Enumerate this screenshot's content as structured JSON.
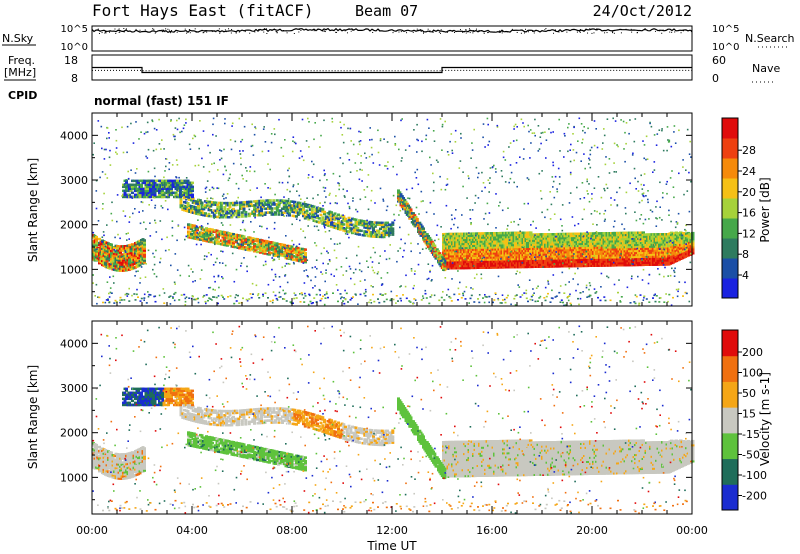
{
  "header": {
    "station": "Fort Hays East (fitACF)",
    "beam": "Beam 07",
    "date": "24/Oct/2012",
    "cpid_label": "CPID",
    "cpid_value": "normal (fast) 151 IF"
  },
  "top_panels": {
    "nsky": {
      "label": "N.Sky",
      "ticks": [
        "10^5",
        "10^0"
      ],
      "right_label": "N.Search",
      "right_ticks": [
        "10^5",
        "10^0"
      ]
    },
    "freq": {
      "label_line1": "Freq.",
      "label_line2": "[MHz]",
      "ticks": [
        "18",
        "8"
      ],
      "right_label": "Nave",
      "right_ticks": [
        "60",
        "0"
      ],
      "freq_steps": [
        {
          "t0": 0,
          "t1": 2,
          "mhz": 13.0
        },
        {
          "t0": 2,
          "t1": 14,
          "mhz": 10.2
        },
        {
          "t0": 14,
          "t1": 24,
          "mhz": 13.0
        }
      ],
      "nave_steps": [
        {
          "t0": 0,
          "t1": 2,
          "nave": 23
        },
        {
          "t0": 2,
          "t1": 14,
          "nave": 22
        },
        {
          "t0": 14,
          "t1": 24,
          "nave": 23
        }
      ]
    }
  },
  "chart_data": {
    "type": "heatmap",
    "x_ticks": [
      "00:00",
      "04:00",
      "08:00",
      "12:00",
      "16:00",
      "20:00",
      "00:00"
    ],
    "xlabel": "Time UT",
    "xlim_hours": [
      0,
      24
    ],
    "panels": [
      {
        "name": "power",
        "ylabel": "Slant Range [km]",
        "ylim": [
          180,
          4500
        ],
        "y_ticks": [
          "1000",
          "2000",
          "3000",
          "4000"
        ],
        "colorbar_label": "Power [dB]",
        "colorbar_ticks": [
          "4",
          "8",
          "12",
          "16",
          "20",
          "24",
          "28"
        ],
        "colors": [
          "#1a22e0",
          "#1b4fa6",
          "#2e7b5f",
          "#46a84a",
          "#a6d23a",
          "#f5c016",
          "#f58a0a",
          "#ee4010",
          "#e00b0b"
        ],
        "scale": [
          0,
          30
        ]
      },
      {
        "name": "velocity",
        "ylabel": "Slant Range [km]",
        "ylim": [
          180,
          4500
        ],
        "y_ticks": [
          "1000",
          "2000",
          "3000",
          "4000"
        ],
        "colorbar_label": "Velocity [m s-1]",
        "colorbar_ticks": [
          "200",
          "100",
          "50",
          "15",
          "-15",
          "-50",
          "-100",
          "-200"
        ],
        "colors": [
          "#1a2cd0",
          "#1f6d5a",
          "#5ec23c",
          "#c8c8c0",
          "#f5a616",
          "#f07010",
          "#e00b0b"
        ],
        "scale": [
          -250,
          250
        ]
      }
    ]
  }
}
